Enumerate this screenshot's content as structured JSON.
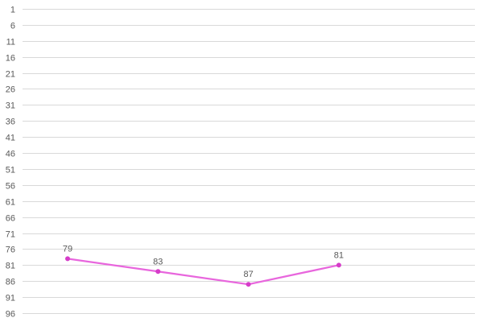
{
  "chart_data": {
    "type": "line",
    "title": "",
    "xlabel": "",
    "ylabel": "",
    "categories": [
      "",
      "",
      "",
      ""
    ],
    "y_axis": {
      "reversed": true,
      "min": 1,
      "max": 96,
      "step": 5,
      "ticks": [
        "1",
        "6",
        "11",
        "16",
        "21",
        "26",
        "31",
        "36",
        "41",
        "46",
        "51",
        "56",
        "61",
        "66",
        "71",
        "76",
        "81",
        "86",
        "91",
        "96"
      ]
    },
    "grid": true,
    "legend": "none",
    "series": [
      {
        "values": [
          79,
          83,
          87,
          81
        ],
        "labels": [
          "79",
          "83",
          "87",
          "81"
        ],
        "color": "#e866dd",
        "marker_color": "#d63cc9"
      }
    ]
  }
}
